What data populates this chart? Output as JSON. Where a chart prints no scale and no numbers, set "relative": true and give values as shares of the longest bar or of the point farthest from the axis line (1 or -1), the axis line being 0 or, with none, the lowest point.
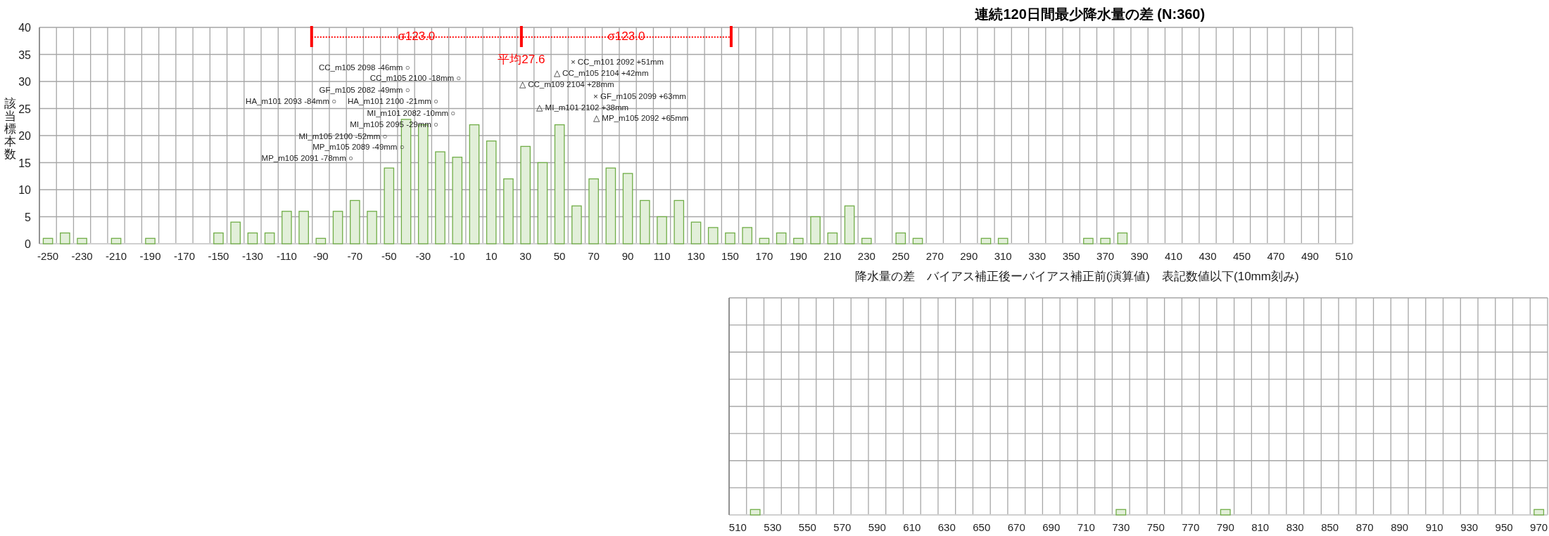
{
  "chart_data": [
    {
      "type": "histogram",
      "title": "連続120日間最少降水量の差 (N:360)",
      "xlabel": "降水量の差　バイアス補正後ーバイアス補正前(演算値)　表記数値以下(10mm刻み)",
      "ylabel": "該当標本数",
      "bins": [
        -255,
        -245,
        -235,
        -225,
        -215,
        -205,
        -195,
        -185,
        -175,
        -165,
        -155,
        -145,
        -135,
        -125,
        -115,
        -105,
        -95,
        -85,
        -75,
        -65,
        -55,
        -45,
        -35,
        -25,
        -15,
        -5,
        5,
        15,
        25,
        35,
        45,
        55,
        65,
        75,
        85,
        95,
        105,
        115,
        125,
        135,
        145,
        155,
        165,
        175,
        185,
        195,
        205,
        215,
        225,
        235,
        245,
        255,
        265,
        275,
        285,
        295,
        305,
        315,
        325,
        335,
        345,
        355,
        365,
        375,
        385,
        395,
        405,
        415,
        425,
        435,
        445,
        455,
        465,
        475,
        485,
        495,
        505,
        515
      ],
      "values": [
        1,
        2,
        1,
        0,
        1,
        0,
        1,
        0,
        0,
        0,
        2,
        4,
        2,
        2,
        6,
        6,
        1,
        6,
        8,
        6,
        14,
        23,
        22,
        17,
        16,
        22,
        19,
        12,
        18,
        15,
        22,
        7,
        12,
        14,
        13,
        8,
        5,
        8,
        4,
        3,
        2,
        3,
        1,
        2,
        1,
        5,
        2,
        7,
        1,
        0,
        2,
        1,
        0,
        0,
        0,
        1,
        1,
        0,
        0,
        0,
        0,
        1,
        1,
        2,
        0,
        0,
        0,
        0,
        0,
        0,
        0,
        0,
        0,
        0,
        0,
        0,
        0
      ],
      "color": "#e2efd9",
      "xlim": [
        -255,
        515
      ],
      "xticks": [
        -250,
        -230,
        -210,
        -190,
        -170,
        -150,
        -130,
        -110,
        -90,
        -70,
        -50,
        -30,
        -10,
        10,
        30,
        50,
        70,
        90,
        110,
        130,
        150,
        170,
        190,
        210,
        230,
        250,
        270,
        290,
        310,
        330,
        350,
        370,
        390,
        410,
        430,
        450,
        470,
        490,
        510
      ],
      "ylim": [
        0,
        40
      ],
      "yticks": [
        0,
        5,
        10,
        15,
        20,
        25,
        30,
        35,
        40
      ],
      "grid": true,
      "ref_lines": [
        {
          "axis": "x",
          "value": -95.4,
          "label": "σ123.0",
          "color": "#ff0000"
        },
        {
          "axis": "x",
          "value": 27.6,
          "label": "平均27.6",
          "color": "#ff0000"
        },
        {
          "axis": "x",
          "value": 150.6,
          "label": "σ123.0",
          "color": "#ff0000"
        }
      ],
      "series": [
        {
          "type": "line",
          "x": [
            -95.4,
            150.6
          ],
          "values": [
            38.2,
            38.2
          ],
          "color": "#ff0000",
          "line_style": "dotted"
        }
      ],
      "annotations": [
        "CC_m105 2098 -46mm ○",
        "CC_m105 2100 -18mm ○",
        "GF_m105 2082 -49mm ○",
        "HA_m101 2093 -84mm ○",
        "HA_m101 2100 -21mm ○",
        "MI_m101 2082 -10mm ○",
        "MI_m105 2095 -29mm ○",
        "MI_m105 2100 -52mm ○",
        "MP_m105 2089 -49mm ○",
        "MP_m105 2091 -78mm ○",
        "× CC_m101 2092 +51mm",
        "△ CC_m105 2104 +42mm",
        "△ CC_m109 2104 +28mm",
        "× GF_m105 2099 +63mm",
        "△ MI_m101 2102 +38mm",
        "△ MP_m105 2092 +65mm"
      ]
    },
    {
      "type": "bar",
      "categories": [
        "510",
        null,
        "530",
        null,
        "550",
        null,
        "570",
        null,
        "590",
        null,
        "610",
        null,
        "630",
        null,
        "650",
        null,
        "670",
        null,
        "690",
        null,
        "710",
        null,
        "730",
        null,
        "750",
        null,
        "770",
        null,
        "790",
        null,
        "810",
        null,
        "830",
        null,
        "850",
        null,
        "870",
        null,
        "890",
        null,
        "910",
        null,
        "930",
        null,
        "950",
        null,
        "970"
      ],
      "values": [
        0,
        1,
        0,
        0,
        0,
        0,
        0,
        0,
        0,
        0,
        0,
        0,
        0,
        0,
        0,
        0,
        0,
        0,
        0,
        0,
        0,
        0,
        1,
        0,
        0,
        0,
        0,
        0,
        1,
        0,
        0,
        0,
        0,
        0,
        0,
        0,
        0,
        0,
        0,
        0,
        0,
        0,
        0,
        0,
        0,
        0,
        1
      ],
      "color": "#e2efd9",
      "relative": true,
      "grid": true,
      "tick_labels": "x"
    }
  ]
}
